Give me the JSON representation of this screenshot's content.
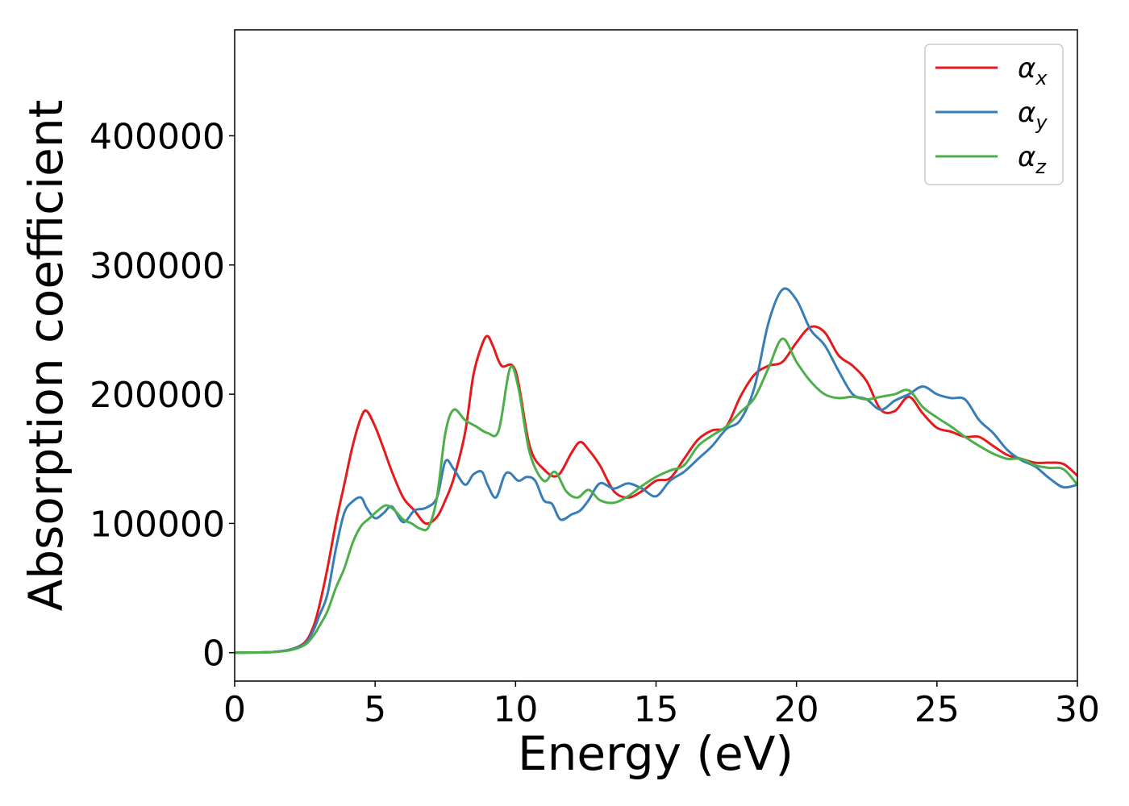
{
  "chart_data": {
    "type": "line",
    "xlabel": "Energy (eV)",
    "ylabel": "Absorption coefficient",
    "xlim": [
      0,
      30
    ],
    "ylim": [
      -22000,
      482000
    ],
    "xticks": [
      0,
      5,
      10,
      15,
      20,
      25,
      30
    ],
    "xtick_labels": [
      "0",
      "5",
      "10",
      "15",
      "20",
      "25",
      "30"
    ],
    "yticks": [
      0,
      100000,
      200000,
      300000,
      400000
    ],
    "ytick_labels": [
      "0",
      "100000",
      "200000",
      "300000",
      "400000"
    ],
    "grid": false,
    "legend_position": "top-right",
    "series": [
      {
        "name": "α_x",
        "label_main": "α",
        "label_sub": "x",
        "color": "#e41a1c",
        "x": [
          0,
          1,
          1.5,
          2,
          2.5,
          2.8,
          3,
          3.3,
          3.6,
          3.9,
          4.2,
          4.5,
          4.7,
          5,
          5.3,
          5.6,
          6,
          6.4,
          6.8,
          7.2,
          7.5,
          7.8,
          8.2,
          8.5,
          8.8,
          9,
          9.2,
          9.5,
          10,
          10.5,
          11,
          11.5,
          12,
          12.3,
          12.6,
          13,
          13.5,
          14,
          14.5,
          15,
          15.5,
          16,
          16.5,
          17,
          17.5,
          18,
          18.5,
          19,
          19.5,
          20,
          20.5,
          21,
          21.5,
          22,
          22.5,
          23,
          23.5,
          24,
          24.5,
          25,
          25.5,
          26,
          26.5,
          27,
          27.5,
          28,
          28.5,
          29,
          29.5,
          30
        ],
        "y": [
          0,
          200,
          800,
          2500,
          8000,
          20000,
          35000,
          65000,
          100000,
          130000,
          160000,
          182000,
          187000,
          175000,
          158000,
          140000,
          120000,
          110000,
          100000,
          105000,
          118000,
          135000,
          170000,
          215000,
          238000,
          245000,
          237000,
          222000,
          218000,
          160000,
          142000,
          137000,
          155000,
          163000,
          157000,
          145000,
          125000,
          120000,
          125000,
          133000,
          135000,
          150000,
          165000,
          172000,
          175000,
          198000,
          215000,
          222000,
          225000,
          240000,
          252000,
          248000,
          230000,
          222000,
          210000,
          188000,
          187000,
          198000,
          185000,
          174000,
          171000,
          167000,
          167000,
          160000,
          153000,
          150000,
          147000,
          147000,
          146000,
          137000
        ]
      },
      {
        "name": "α_y",
        "label_main": "α",
        "label_sub": "y",
        "color": "#377eb8",
        "x": [
          0,
          1,
          1.5,
          2,
          2.5,
          2.8,
          3,
          3.3,
          3.6,
          3.9,
          4.2,
          4.5,
          4.7,
          5,
          5.3,
          5.6,
          6,
          6.4,
          6.8,
          7.2,
          7.5,
          7.8,
          8.2,
          8.5,
          8.8,
          9,
          9.3,
          9.6,
          9.8,
          10.1,
          10.4,
          10.7,
          11,
          11.3,
          11.6,
          12,
          12.3,
          12.6,
          13,
          13.5,
          14,
          14.5,
          15,
          15.5,
          16,
          16.5,
          17,
          17.5,
          18,
          18.5,
          19,
          19.5,
          20,
          20.5,
          21,
          21.5,
          22,
          22.5,
          23,
          23.5,
          24,
          24.5,
          25,
          25.5,
          26,
          26.5,
          27,
          27.5,
          28,
          28.5,
          29,
          29.5,
          30
        ],
        "y": [
          0,
          200,
          800,
          2500,
          7000,
          17000,
          28000,
          45000,
          80000,
          108000,
          117000,
          120000,
          112000,
          104000,
          108000,
          113000,
          101000,
          110000,
          112000,
          120000,
          148000,
          142000,
          130000,
          138000,
          140000,
          130000,
          120000,
          137000,
          139000,
          133000,
          136000,
          133000,
          118000,
          115000,
          103000,
          107000,
          110000,
          118000,
          131000,
          127000,
          131000,
          127000,
          121000,
          133000,
          140000,
          150000,
          160000,
          173000,
          180000,
          205000,
          255000,
          281000,
          273000,
          250000,
          238000,
          218000,
          200000,
          196000,
          188000,
          195000,
          200000,
          206000,
          200000,
          197000,
          196000,
          180000,
          170000,
          157000,
          149000,
          144000,
          135000,
          128000,
          130000
        ]
      },
      {
        "name": "α_z",
        "label_main": "α",
        "label_sub": "z",
        "color": "#4daf4a",
        "x": [
          0,
          1,
          1.5,
          2,
          2.5,
          2.8,
          3,
          3.3,
          3.6,
          3.9,
          4.2,
          4.5,
          4.8,
          5.1,
          5.4,
          5.7,
          6,
          6.3,
          6.6,
          6.9,
          7.2,
          7.5,
          7.8,
          8.2,
          8.6,
          9,
          9.4,
          9.8,
          10.1,
          10.5,
          11,
          11.4,
          11.8,
          12.2,
          12.6,
          13,
          13.5,
          14,
          14.5,
          15,
          15.5,
          16,
          16.5,
          17,
          17.5,
          18,
          18.5,
          19,
          19.5,
          20,
          20.5,
          21,
          21.5,
          22,
          22.5,
          23,
          23.5,
          24,
          24.5,
          25,
          25.5,
          26,
          26.5,
          27,
          27.5,
          28,
          28.5,
          29,
          29.5,
          30
        ],
        "y": [
          0,
          200,
          700,
          2000,
          6000,
          13000,
          20000,
          32000,
          50000,
          65000,
          85000,
          98000,
          104000,
          110000,
          114000,
          110000,
          103000,
          100000,
          96000,
          97000,
          120000,
          170000,
          188000,
          180000,
          175000,
          170000,
          172000,
          220000,
          205000,
          155000,
          133000,
          140000,
          125000,
          120000,
          126000,
          118000,
          116000,
          121000,
          129000,
          136000,
          141000,
          145000,
          160000,
          168000,
          175000,
          186000,
          197000,
          220000,
          243000,
          225000,
          210000,
          200000,
          197000,
          198000,
          196000,
          198000,
          200000,
          203000,
          190000,
          182000,
          175000,
          167000,
          160000,
          154000,
          150000,
          150000,
          145000,
          143000,
          142000,
          130000
        ]
      }
    ]
  }
}
